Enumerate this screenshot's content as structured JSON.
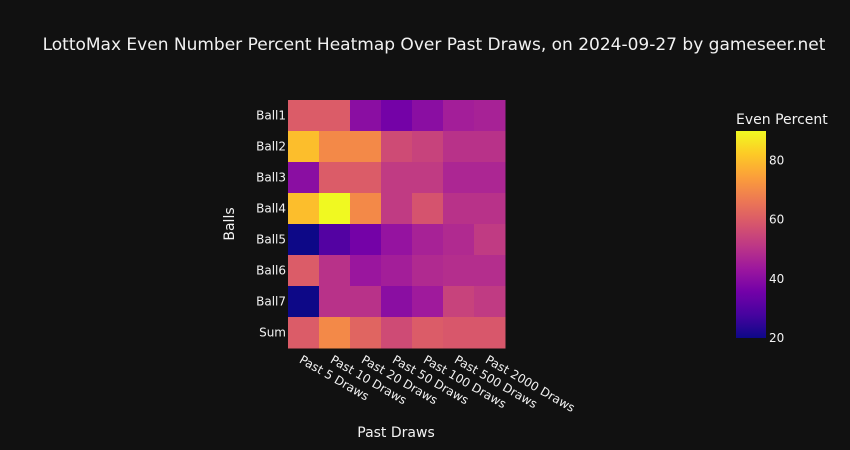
{
  "chart_data": {
    "type": "heatmap",
    "title": "LottoMax Even Number Percent Heatmap Over Past Draws, on 2024-09-27 by gameseer.net",
    "xlabel": "Past Draws",
    "ylabel": "Balls",
    "x_categories": [
      "Past 5 Draws",
      "Past 10 Draws",
      "Past 20 Draws",
      "Past 50 Draws",
      "Past 100 Draws",
      "Past 500 Draws",
      "Past 2000 Draws"
    ],
    "y_categories": [
      "Ball1",
      "Ball2",
      "Ball3",
      "Ball4",
      "Ball5",
      "Ball6",
      "Ball7",
      "Sum"
    ],
    "values": [
      [
        60,
        60,
        40,
        36,
        40,
        45,
        46
      ],
      [
        80,
        70,
        70,
        56,
        54,
        50,
        50
      ],
      [
        40,
        60,
        60,
        52,
        52,
        47,
        47
      ],
      [
        80,
        90,
        70,
        52,
        58,
        50,
        50
      ],
      [
        20,
        30,
        36,
        42,
        46,
        48,
        52
      ],
      [
        60,
        50,
        43,
        45,
        48,
        49,
        49
      ],
      [
        20,
        50,
        50,
        40,
        44,
        54,
        52
      ],
      [
        60,
        70,
        62,
        56,
        60,
        59,
        59
      ]
    ],
    "colorbar": {
      "title": "Even Percent",
      "range": [
        20,
        90
      ],
      "ticks": [
        "20",
        "40",
        "60",
        "80"
      ],
      "colorscale": [
        "#0d0887",
        "#46039f",
        "#7201a8",
        "#9c179e",
        "#bd3786",
        "#d8576b",
        "#ed7953",
        "#fb9f3a",
        "#fdca26",
        "#f0f921"
      ]
    }
  }
}
